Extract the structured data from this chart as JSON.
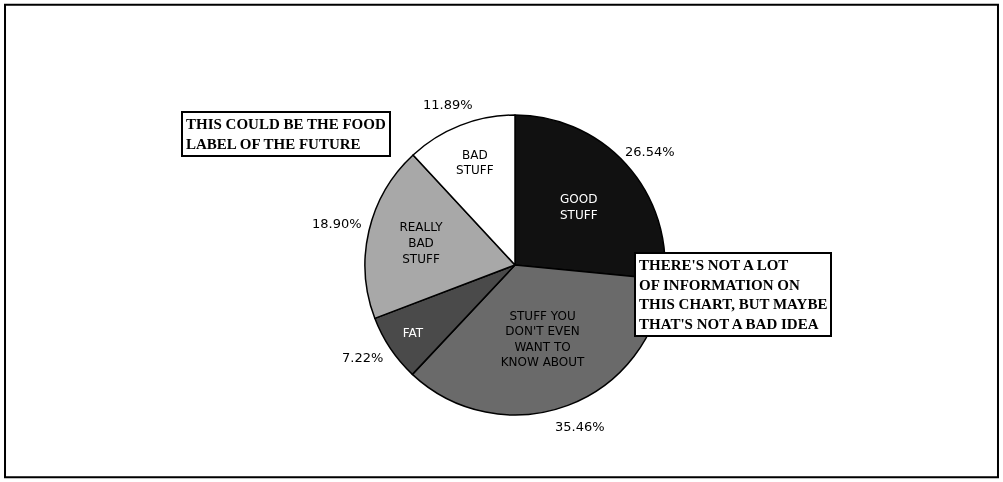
{
  "chart_data": {
    "type": "pie",
    "categories": [
      "GOOD\nSTUFF",
      "STUFF YOU\nDON'T EVEN\nWANT TO\nKNOW ABOUT",
      "FAT",
      "REALLY\nBAD\nSTUFF",
      "BAD\nSTUFF"
    ],
    "values": [
      26.54,
      35.46,
      7.22,
      18.9,
      11.89
    ],
    "value_labels": [
      "26.54%",
      "35.46%",
      "7.22%",
      "18.90%",
      "11.89%"
    ],
    "colors": [
      "#111111",
      "#6a6a6a",
      "#4a4a4a",
      "#a8a8a8",
      "#ffffff"
    ],
    "annotations": [
      "THIS COULD BE THE FOOD\nLABEL OF THE FUTURE",
      "THERE'S NOT A LOT\nOF INFORMATION ON\nTHIS CHART, BUT MAYBE\nTHAT'S NOT A BAD IDEA"
    ],
    "legend": false
  }
}
